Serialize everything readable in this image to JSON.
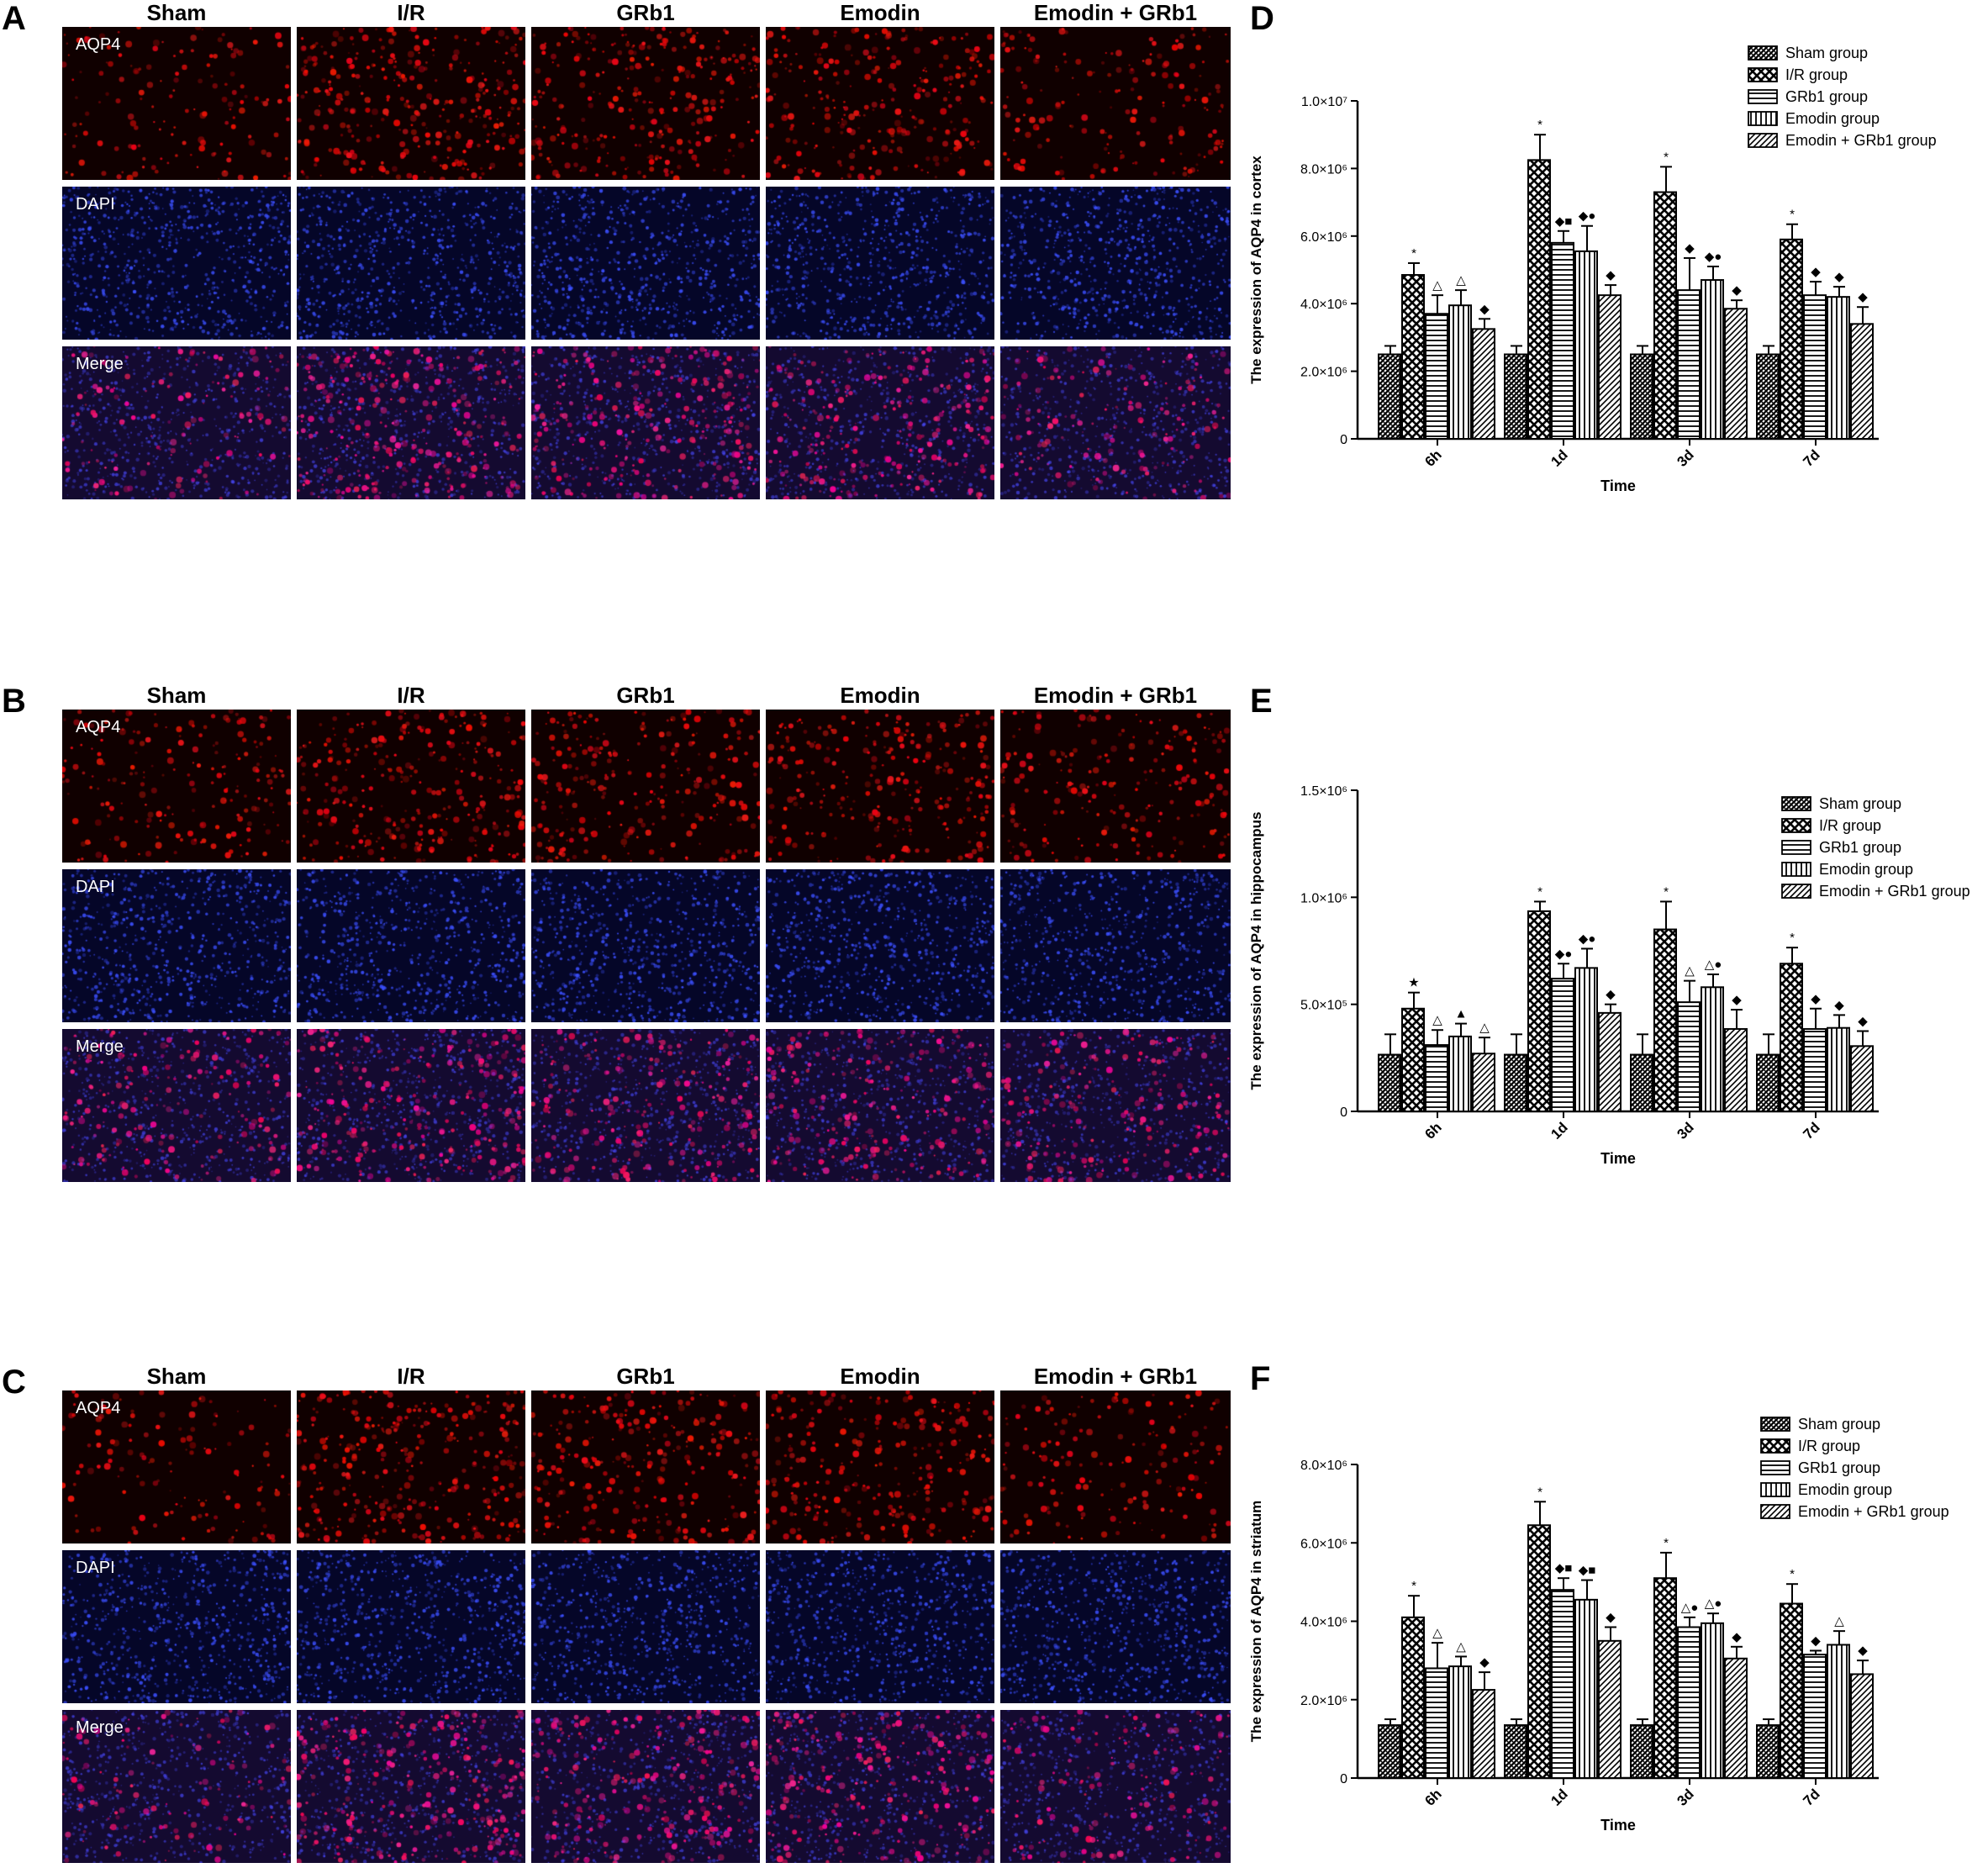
{
  "panels_left": [
    {
      "letter": "A",
      "columns": [
        "Sham",
        "I/R",
        "GRb1",
        "Emodin",
        "Emodin + GRb1"
      ],
      "rows": [
        "AQP4",
        "DAPI",
        "Merge"
      ]
    },
    {
      "letter": "B",
      "columns": [
        "Sham",
        "I/R",
        "GRb1",
        "Emodin",
        "Emodin + GRb1"
      ],
      "rows": [
        "AQP4",
        "DAPI",
        "Merge"
      ]
    },
    {
      "letter": "C",
      "columns": [
        "Sham",
        "I/R",
        "GRb1",
        "Emodin",
        "Emodin + GRb1"
      ],
      "rows": [
        "AQP4",
        "DAPI",
        "Merge"
      ]
    }
  ],
  "colors": {
    "aqp4": "#e0141a",
    "dapi": "#2b3ee8",
    "background": "#000000"
  },
  "chart_data": [
    {
      "letter": "D",
      "type": "bar",
      "ylabel": "The expression of AQP4 in cortex",
      "xlabel": "Time",
      "categories": [
        "6h",
        "1d",
        "3d",
        "7d"
      ],
      "ylim": [
        0,
        10000000
      ],
      "yticks": [
        {
          "value": 0,
          "label": "0"
        },
        {
          "value": 2000000,
          "label": "2.0×10⁶"
        },
        {
          "value": 4000000,
          "label": "4.0×10⁶"
        },
        {
          "value": 6000000,
          "label": "6.0×10⁶"
        },
        {
          "value": 8000000,
          "label": "8.0×10⁶"
        },
        {
          "value": 10000000,
          "label": "1.0×10⁷"
        }
      ],
      "series": [
        {
          "name": "Sham group",
          "pattern": "hatch-fine",
          "values": [
            2500000,
            2500000,
            2500000,
            2500000
          ],
          "errors": [
            250000,
            250000,
            250000,
            250000
          ],
          "marks": [
            "",
            "",
            "",
            ""
          ]
        },
        {
          "name": "I/R group",
          "pattern": "check",
          "values": [
            4850000,
            8250000,
            7300000,
            5900000
          ],
          "errors": [
            350000,
            750000,
            750000,
            450000
          ],
          "marks": [
            "*",
            "*",
            "*",
            "*"
          ]
        },
        {
          "name": "GRb1 group",
          "pattern": "horizontal",
          "values": [
            3700000,
            5800000,
            4400000,
            4250000
          ],
          "errors": [
            550000,
            350000,
            950000,
            400000
          ],
          "marks": [
            "△",
            "◆■",
            "◆",
            "◆"
          ]
        },
        {
          "name": "Emodin group",
          "pattern": "vertical",
          "values": [
            3950000,
            5550000,
            4700000,
            4200000
          ],
          "errors": [
            450000,
            750000,
            400000,
            300000
          ],
          "marks": [
            "△",
            "◆●",
            "◆●",
            "◆"
          ]
        },
        {
          "name": "Emodin + GRb1 group",
          "pattern": "diagonal",
          "values": [
            3250000,
            4250000,
            3850000,
            3400000
          ],
          "errors": [
            300000,
            300000,
            250000,
            500000
          ],
          "marks": [
            "◆",
            "◆",
            "◆",
            "◆"
          ]
        }
      ]
    },
    {
      "letter": "E",
      "type": "bar",
      "ylabel": "The expression of AQP4 in hippocampus",
      "xlabel": "Time",
      "categories": [
        "6h",
        "1d",
        "3d",
        "7d"
      ],
      "ylim": [
        0,
        1500000
      ],
      "yticks": [
        {
          "value": 0,
          "label": "0"
        },
        {
          "value": 500000,
          "label": "5.0×10⁵"
        },
        {
          "value": 1000000,
          "label": "1.0×10⁶"
        },
        {
          "value": 1500000,
          "label": "1.5×10⁶"
        }
      ],
      "series": [
        {
          "name": "Sham group",
          "pattern": "hatch-fine",
          "values": [
            265000,
            265000,
            265000,
            265000
          ],
          "errors": [
            95000,
            95000,
            95000,
            95000
          ],
          "marks": [
            "",
            "",
            "",
            ""
          ]
        },
        {
          "name": "I/R group",
          "pattern": "check",
          "values": [
            480000,
            935000,
            850000,
            690000
          ],
          "errors": [
            75000,
            45000,
            130000,
            75000
          ],
          "marks": [
            "★",
            "*",
            "*",
            "*"
          ]
        },
        {
          "name": "GRb1 group",
          "pattern": "horizontal",
          "values": [
            310000,
            620000,
            510000,
            385000
          ],
          "errors": [
            70000,
            70000,
            100000,
            95000
          ],
          "marks": [
            "△",
            "◆●",
            "△",
            "◆"
          ]
        },
        {
          "name": "Emodin group",
          "pattern": "vertical",
          "values": [
            350000,
            670000,
            580000,
            390000
          ],
          "errors": [
            60000,
            90000,
            60000,
            60000
          ],
          "marks": [
            "▲",
            "◆●",
            "△●",
            "◆"
          ]
        },
        {
          "name": "Emodin + GRb1 group",
          "pattern": "diagonal",
          "values": [
            270000,
            460000,
            385000,
            305000
          ],
          "errors": [
            75000,
            40000,
            90000,
            70000
          ],
          "marks": [
            "△",
            "◆",
            "◆",
            "◆"
          ]
        }
      ]
    },
    {
      "letter": "F",
      "type": "bar",
      "ylabel": "The expression of AQP4 in striatum",
      "xlabel": "Time",
      "categories": [
        "6h",
        "1d",
        "3d",
        "7d"
      ],
      "ylim": [
        0,
        8000000
      ],
      "yticks": [
        {
          "value": 0,
          "label": "0"
        },
        {
          "value": 2000000,
          "label": "2.0×10⁶"
        },
        {
          "value": 4000000,
          "label": "4.0×10⁶"
        },
        {
          "value": 6000000,
          "label": "6.0×10⁶"
        },
        {
          "value": 8000000,
          "label": "8.0×10⁶"
        }
      ],
      "series": [
        {
          "name": "Sham group",
          "pattern": "hatch-fine",
          "values": [
            1350000,
            1350000,
            1350000,
            1350000
          ],
          "errors": [
            150000,
            150000,
            150000,
            150000
          ],
          "marks": [
            "",
            "",
            "",
            ""
          ]
        },
        {
          "name": "I/R group",
          "pattern": "check",
          "values": [
            4100000,
            6450000,
            5100000,
            4450000
          ],
          "errors": [
            550000,
            600000,
            650000,
            500000
          ],
          "marks": [
            "*",
            "*",
            "*",
            "*"
          ]
        },
        {
          "name": "GRb1 group",
          "pattern": "horizontal",
          "values": [
            2800000,
            4800000,
            3850000,
            3150000
          ],
          "errors": [
            650000,
            300000,
            250000,
            100000
          ],
          "marks": [
            "△",
            "◆■",
            "△●",
            "◆"
          ]
        },
        {
          "name": "Emodin group",
          "pattern": "vertical",
          "values": [
            2850000,
            4550000,
            3950000,
            3400000
          ],
          "errors": [
            250000,
            500000,
            250000,
            350000
          ],
          "marks": [
            "△",
            "◆■",
            "△●",
            "△"
          ]
        },
        {
          "name": "Emodin + GRb1 group",
          "pattern": "diagonal",
          "values": [
            2250000,
            3500000,
            3050000,
            2650000
          ],
          "errors": [
            450000,
            350000,
            300000,
            350000
          ],
          "marks": [
            "◆",
            "◆",
            "◆",
            "◆"
          ]
        }
      ]
    }
  ]
}
